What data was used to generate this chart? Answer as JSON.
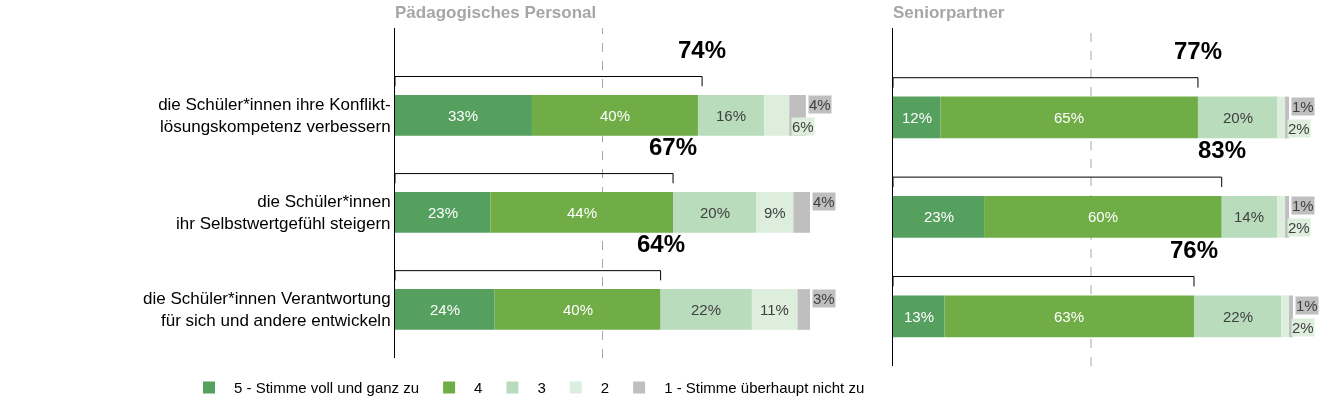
{
  "chart_data": [
    {
      "type": "bar",
      "orientation": "horizontal",
      "stacked": true,
      "title": "Pädagogisches Personal",
      "categories": [
        "die Schüler*innen ihre Konflikt-\nlösungskompetenz verbessern",
        "die Schüler*innen\nihr Selbstwertgefühl steigern",
        "die Schüler*innen Verantwortung\nfür sich und andere entwickeln"
      ],
      "xlim": [
        0,
        100
      ],
      "tick_labels": "y",
      "legend": "bottom",
      "series": [
        {
          "name": "5 - Stimme voll und ganz zu",
          "color": "#55a05e",
          "values": [
            33,
            23,
            24
          ],
          "value_labels": [
            "33%",
            "23%",
            "24%"
          ]
        },
        {
          "name": "4",
          "color": "#70ad47",
          "values": [
            40,
            44,
            40
          ],
          "value_labels": [
            "40%",
            "44%",
            "40%"
          ]
        },
        {
          "name": "3",
          "color": "#b9dcbc",
          "values": [
            16,
            20,
            22
          ],
          "value_labels": [
            "16%",
            "20%",
            "22%"
          ]
        },
        {
          "name": "2",
          "color": "#ddefdc",
          "values": [
            6,
            9,
            11
          ],
          "value_labels": [
            "6%",
            "9%",
            "11%"
          ]
        },
        {
          "name": "1 - Stimme überhaupt nicht zu",
          "color": "#bfbfbf",
          "values": [
            4,
            4,
            3
          ],
          "value_labels": [
            "4%",
            "4%",
            "3%"
          ]
        }
      ],
      "ref_lines": [
        {
          "axis": "x",
          "value": 50,
          "color": "#a6a6a6",
          "line_style": "dashed"
        }
      ],
      "annotations": [
        {
          "text": "74%",
          "x": 74,
          "y": "die Schüler*innen ihre Konflikt-\nlösungskompetenz verbessern"
        },
        {
          "text": "67%",
          "x": 67,
          "y": "die Schüler*innen\nihr Selbstwertgefühl steigern"
        },
        {
          "text": "64%",
          "x": 64,
          "y": "die Schüler*innen Verantwortung\nfür sich und andere entwickeln"
        }
      ]
    },
    {
      "type": "bar",
      "orientation": "horizontal",
      "stacked": true,
      "title": "Seniorpartner",
      "categories": [
        "die Schüler*innen ihre Konflikt-\nlösungskompetenz verbessern",
        "die Schüler*innen\nihr Selbstwertgefühl steigern",
        "die Schüler*innen Verantwortung\nfür sich und andere entwickeln"
      ],
      "xlim": [
        0,
        101
      ],
      "tick_labels": false,
      "series": [
        {
          "color": "#55a05e",
          "values": [
            12,
            23,
            13
          ],
          "value_labels": [
            "12%",
            "23%",
            "13%"
          ]
        },
        {
          "color": "#70ad47",
          "values": [
            65,
            60,
            63
          ],
          "value_labels": [
            "65%",
            "60%",
            "63%"
          ]
        },
        {
          "color": "#b9dcbc",
          "values": [
            20,
            14,
            22
          ],
          "value_labels": [
            "20%",
            "14%",
            "22%"
          ]
        },
        {
          "color": "#ddefdc",
          "values": [
            2,
            2,
            2
          ],
          "value_labels": [
            "2%",
            "2%",
            "2%"
          ]
        },
        {
          "color": "#bfbfbf",
          "values": [
            1,
            1,
            1
          ],
          "value_labels": [
            "1%",
            "1%",
            "1%"
          ]
        }
      ],
      "ref_lines": [
        {
          "axis": "x",
          "value": 50,
          "color": "#a6a6a6",
          "line_style": "dashed"
        }
      ],
      "annotations": [
        {
          "text": "77%",
          "x": 77,
          "y": "die Schüler*innen ihre Konflikt-\nlösungskompetenz verbessern"
        },
        {
          "text": "83%",
          "x": 83,
          "y": "die Schüler*innen\nihr Selbstwertgefühl steigern"
        },
        {
          "text": "76%",
          "x": 76,
          "y": "die Schüler*innen Verantwortung\nfür sich und andere entwickeln"
        }
      ]
    }
  ]
}
